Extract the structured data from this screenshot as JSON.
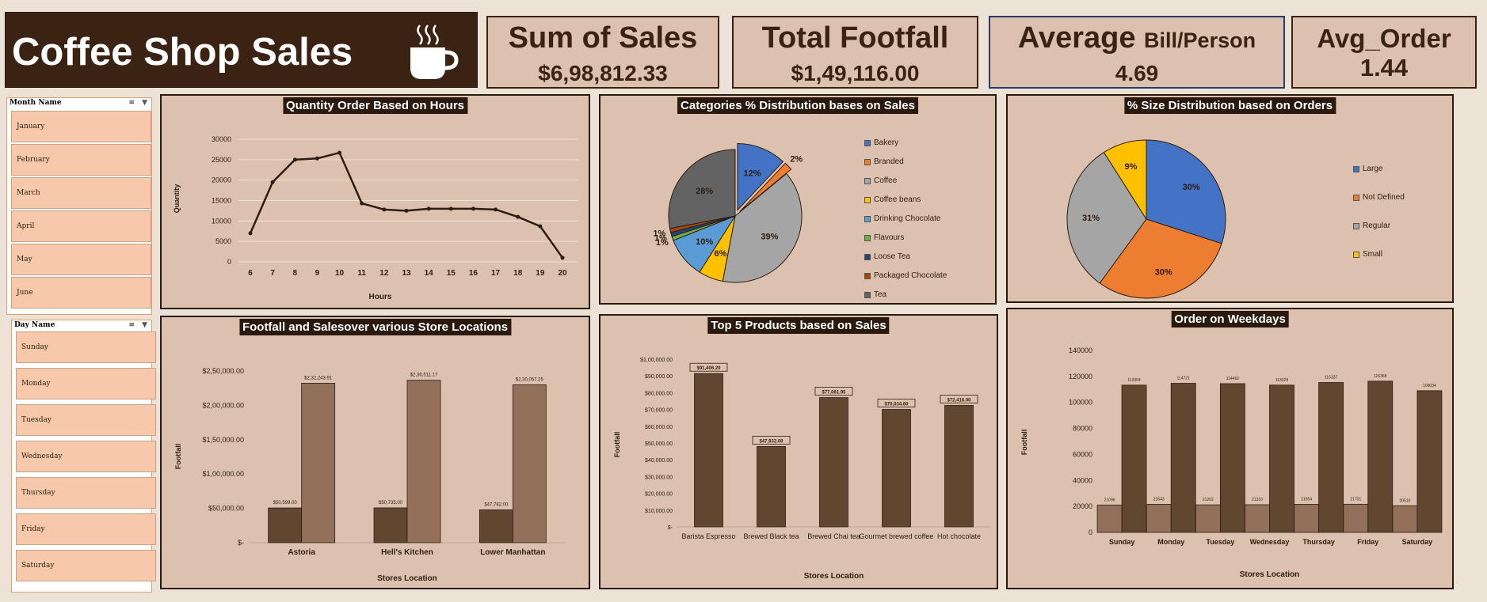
{
  "header": {
    "title": "Coffee Shop Sales",
    "icon": "coffee-cup-icon"
  },
  "kpis": {
    "sales": {
      "label": "Sum of Sales",
      "value": "$6,98,812.33"
    },
    "footfall": {
      "label": "Total Footfall",
      "value": "$1,49,116.00"
    },
    "avg_bill": {
      "label": "Average",
      "label_small": "Bill/Person",
      "value": "4.69"
    },
    "avg_order": {
      "label": "Avg_Order",
      "value": "1.44"
    }
  },
  "month_slicer": {
    "title": "Month Name",
    "items": [
      "January",
      "February",
      "March",
      "April",
      "May",
      "June"
    ]
  },
  "day_slicer": {
    "title": "Day Name",
    "items": [
      "Sunday",
      "Monday",
      "Tuesday",
      "Wednesday",
      "Thursday",
      "Friday",
      "Saturday"
    ]
  },
  "colors": {
    "dark_brown": "#3b2314",
    "bar_dark": "#614630",
    "bar_light": "#92705a",
    "panel": "#dcc2ae",
    "slicer_item": "#f7c8aa"
  },
  "chart_data": [
    {
      "id": "hours",
      "type": "line",
      "title": "Quantity Order Based on Hours",
      "xlabel": "Hours",
      "ylabel": "Quantity",
      "ylim": [
        0,
        30000
      ],
      "yticks": [
        0,
        5000,
        10000,
        15000,
        20000,
        25000,
        30000
      ],
      "categories": [
        "6",
        "7",
        "8",
        "9",
        "10",
        "11",
        "12",
        "13",
        "14",
        "15",
        "16",
        "17",
        "18",
        "19",
        "20"
      ],
      "values": [
        7000,
        19500,
        25000,
        25300,
        26700,
        14300,
        12800,
        12500,
        13000,
        13000,
        13000,
        12800,
        11000,
        8700,
        1000
      ],
      "grid": true
    },
    {
      "id": "categories",
      "type": "pie",
      "title": "Categories % Distribution bases on Sales",
      "legend": "right",
      "slices": [
        {
          "name": "Bakery",
          "value": 12,
          "label": "12%",
          "color": "#4472c4"
        },
        {
          "name": "Branded",
          "value": 2,
          "label": "2%",
          "color": "#ed7d31"
        },
        {
          "name": "Coffee",
          "value": 39,
          "label": "39%",
          "color": "#a5a5a5"
        },
        {
          "name": "Coffee beans",
          "value": 6,
          "label": "6%",
          "color": "#ffc000"
        },
        {
          "name": "Drinking Chocolate",
          "value": 10,
          "label": "10%",
          "color": "#5b9bd5"
        },
        {
          "name": "Flavours",
          "value": 1,
          "label": "1%",
          "color": "#70ad47"
        },
        {
          "name": "Loose Tea",
          "value": 1,
          "label": "1%",
          "color": "#264478"
        },
        {
          "name": "Packaged Chocolate",
          "value": 1,
          "label": "1%",
          "color": "#9e480e"
        },
        {
          "name": "Tea",
          "value": 28,
          "label": "28%",
          "color": "#636363"
        }
      ]
    },
    {
      "id": "sizes",
      "type": "pie",
      "title": "% Size Distribution based on Orders",
      "legend": "right",
      "slices": [
        {
          "name": "Large",
          "value": 30,
          "label": "30%",
          "color": "#4472c4"
        },
        {
          "name": "Not Defined",
          "value": 30,
          "label": "30%",
          "color": "#ed7d31"
        },
        {
          "name": "Regular",
          "value": 31,
          "label": "31%",
          "color": "#a5a5a5"
        },
        {
          "name": "Small",
          "value": 9,
          "label": "9%",
          "color": "#ffc000"
        }
      ]
    },
    {
      "id": "stores",
      "type": "bar",
      "title": "Footfall and Salesover various Store Locations",
      "xlabel": "Stores Location",
      "ylabel": "Footfall",
      "ylim": [
        0,
        250000
      ],
      "yticks": [
        0,
        50000,
        100000,
        150000,
        200000,
        250000
      ],
      "ytick_labels": [
        "$-",
        "$50,000.00",
        "$1,00,000.00",
        "$1,50,000.00",
        "$2,00,000.00",
        "$2,50,000.00"
      ],
      "categories": [
        "Astoria",
        "Hell's Kitchen",
        "Lower Manhattan"
      ],
      "series": [
        {
          "values": [
            50599,
            50735,
            47782
          ],
          "labels": [
            "$50,599.00",
            "$50,735.00",
            "$47,782.00"
          ]
        },
        {
          "values": [
            232243.91,
            236511.17,
            230057.25
          ],
          "labels": [
            "$2,32,243.91",
            "$2,36,511.17",
            "$2,30,057.25"
          ]
        }
      ]
    },
    {
      "id": "products",
      "type": "bar",
      "title": "Top 5 Products based on Sales",
      "xlabel": "Stores Location",
      "ylabel": "Footfall",
      "ylim": [
        0,
        100000
      ],
      "yticks": [
        0,
        10000,
        20000,
        30000,
        40000,
        50000,
        60000,
        70000,
        80000,
        90000,
        100000
      ],
      "ytick_labels": [
        "$-",
        "$10,000.00",
        "$20,000.00",
        "$30,000.00",
        "$40,000.00",
        "$50,000.00",
        "$60,000.00",
        "$70,000.00",
        "$80,000.00",
        "$90,000.00",
        "$1,00,000.00"
      ],
      "categories": [
        "Barista Espresso",
        "Brewed Black tea",
        "Brewed Chai tea",
        "Gourmet brewed coffee",
        "Hot chocolate"
      ],
      "values": [
        91406.2,
        47932,
        77081.95,
        70034.6,
        72416
      ],
      "labels": [
        "$91,406.20",
        "$47,932.00",
        "$77,081.95",
        "$70,034.60",
        "$72,416.00"
      ]
    },
    {
      "id": "weekdays",
      "type": "bar",
      "title": "Order on Weekdays",
      "xlabel": "Stores Location",
      "ylabel": "Footfall",
      "ylim": [
        0,
        140000
      ],
      "yticks": [
        0,
        20000,
        40000,
        60000,
        80000,
        100000,
        120000,
        140000
      ],
      "categories": [
        "Sunday",
        "Monday",
        "Tuesday",
        "Wednesday",
        "Thursday",
        "Friday",
        "Saturday"
      ],
      "series": [
        {
          "values": [
            21096,
            21643,
            21202,
            21310,
            21654,
            21701,
            20510
          ],
          "labels": [
            "21096",
            "21643",
            "21202",
            "21310",
            "21654",
            "21701",
            "20510"
          ]
        },
        {
          "values": [
            113304,
            114721,
            114462,
            113329,
            115337,
            116368,
            109034
          ],
          "labels": [
            "113304",
            "114721",
            "114462",
            "113329",
            "115337",
            "116368",
            "109034"
          ]
        }
      ]
    }
  ]
}
